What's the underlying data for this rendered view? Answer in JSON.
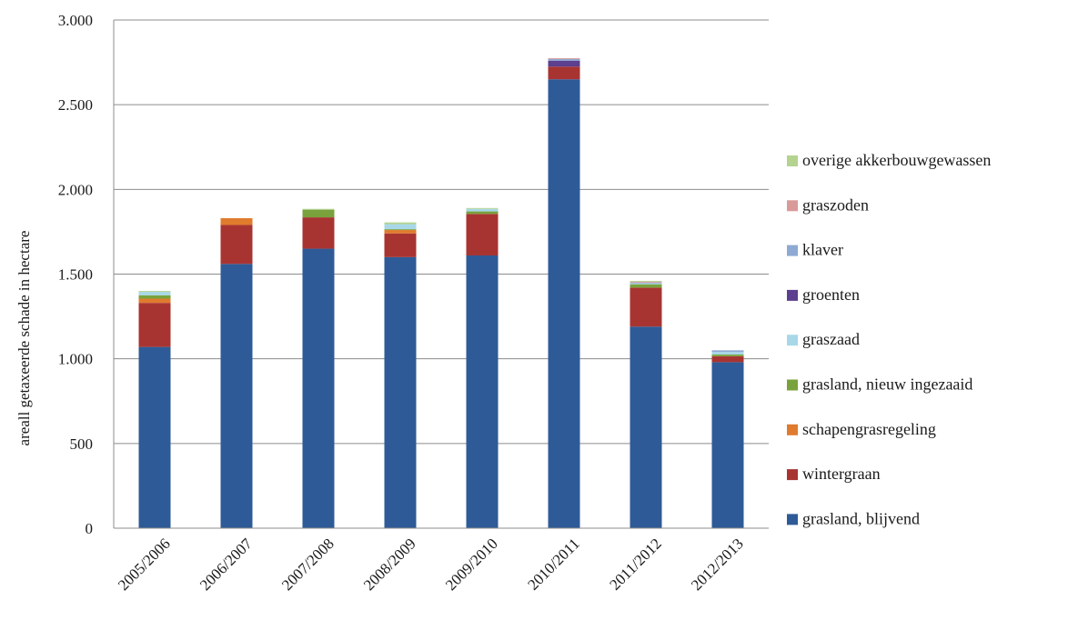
{
  "chart_data": {
    "type": "bar",
    "stacked": true,
    "ylabel": "areall getaxeerde schade in hectare",
    "xlabel": "",
    "ylim": [
      0,
      3000
    ],
    "yticks": [
      0,
      500,
      1000,
      1500,
      2000,
      2500,
      3000
    ],
    "ytick_labels": [
      "0",
      "500",
      "1.000",
      "1.500",
      "2.000",
      "2.500",
      "3.000"
    ],
    "grid": true,
    "legend_position": "right",
    "categories": [
      "2005/2006",
      "2006/2007",
      "2007/2008",
      "2008/2009",
      "2009/2010",
      "2010/2011",
      "2011/2012",
      "2012/2013"
    ],
    "series": [
      {
        "name": "grasland, blijvend",
        "color": "#2e5b97",
        "values": [
          1070,
          1560,
          1650,
          1600,
          1610,
          2650,
          1190,
          980
        ]
      },
      {
        "name": "wintergraan",
        "color": "#a83432",
        "values": [
          260,
          230,
          185,
          140,
          245,
          75,
          230,
          35
        ]
      },
      {
        "name": "schapengrasregeling",
        "color": "#e07b2e",
        "values": [
          25,
          40,
          0,
          20,
          0,
          0,
          0,
          0
        ]
      },
      {
        "name": "grasland, nieuw ingezaaid",
        "color": "#79a23d",
        "values": [
          20,
          0,
          45,
          5,
          15,
          0,
          20,
          10
        ]
      },
      {
        "name": "graszaad",
        "color": "#a8d8e8",
        "values": [
          20,
          0,
          0,
          30,
          15,
          0,
          5,
          15
        ]
      },
      {
        "name": "groenten",
        "color": "#5c3f8e",
        "values": [
          0,
          0,
          0,
          0,
          0,
          35,
          0,
          0
        ]
      },
      {
        "name": "klaver",
        "color": "#8ea9d3",
        "values": [
          0,
          0,
          0,
          0,
          0,
          10,
          5,
          10
        ]
      },
      {
        "name": "graszoden",
        "color": "#d99a9a",
        "values": [
          0,
          0,
          0,
          0,
          0,
          5,
          5,
          0
        ]
      },
      {
        "name": "overige akkerbouwgewassen",
        "color": "#b3d38f",
        "values": [
          5,
          0,
          5,
          10,
          5,
          0,
          5,
          0
        ]
      }
    ]
  }
}
